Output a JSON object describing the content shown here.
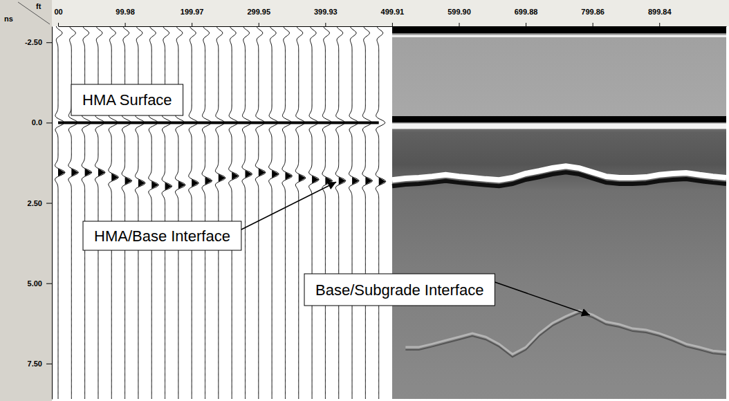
{
  "chart_data": {
    "type": "radargram",
    "x_label": "ft",
    "y_label": "ns",
    "xlim": [
      0,
      1000
    ],
    "xticks": [
      {
        "value": 0,
        "label": "00"
      },
      99.98,
      199.97,
      299.95,
      399.93,
      499.91,
      {
        "value": 599.9,
        "label": "599.90"
      },
      699.88,
      799.86,
      899.84
    ],
    "ylim": [
      -3,
      8.6
    ],
    "yticks": [
      {
        "value": -2.5,
        "label": "-2.50"
      },
      {
        "value": 0,
        "label": "0.0"
      },
      {
        "value": 2.5,
        "label": "2.50"
      },
      {
        "value": 5,
        "label": "5.00"
      },
      {
        "value": 7.5,
        "label": "7.50"
      }
    ],
    "x": [
      0,
      20,
      40,
      60,
      80,
      100,
      120,
      140,
      160,
      180,
      200,
      220,
      240,
      260,
      280,
      300,
      320,
      340,
      360,
      380,
      400,
      420,
      440,
      460,
      480,
      500,
      520,
      540,
      560,
      580,
      600,
      620,
      640,
      660,
      680,
      700,
      720,
      740,
      760,
      780,
      800,
      820,
      840,
      860,
      880,
      900,
      920,
      940,
      960,
      980,
      1000
    ],
    "series": [
      {
        "color": "#000000",
        "values": [
          -2.79,
          -2.79,
          -2.79,
          -2.79,
          -2.79,
          -2.79,
          -2.79,
          -2.79,
          -2.79,
          -2.79,
          -2.79,
          -2.79,
          -2.79,
          -2.79,
          -2.79,
          -2.79,
          -2.79,
          -2.79,
          -2.79,
          -2.79,
          -2.79,
          -2.79,
          -2.79,
          -2.79,
          -2.79,
          -2.79,
          -2.79,
          -2.79,
          -2.79,
          -2.79,
          -2.79,
          -2.79,
          -2.79,
          -2.79,
          -2.79,
          -2.79,
          -2.79,
          -2.79,
          -2.79,
          -2.79,
          -2.79,
          -2.79,
          -2.79,
          -2.79,
          -2.79,
          -2.79,
          -2.79,
          -2.79,
          -2.79,
          -2.79,
          -2.79
        ]
      },
      {
        "name": "HMA Surface",
        "color": "#000000",
        "line_style": "solid",
        "values": [
          0,
          0,
          0,
          0,
          0,
          0,
          0,
          0,
          0,
          0,
          0,
          0,
          0,
          0,
          0,
          0,
          0,
          0,
          0,
          0,
          0,
          0,
          0,
          0,
          0,
          0,
          0,
          0,
          0,
          0,
          0,
          0,
          0,
          0,
          0,
          0,
          0,
          0,
          0,
          0,
          0,
          0,
          0,
          0,
          0,
          0,
          0,
          0,
          0,
          0,
          0
        ]
      },
      {
        "name": "HMA/Base Interface",
        "color": "#ffffff",
        "marker": "triangle",
        "values": [
          1.55,
          1.55,
          1.55,
          1.55,
          1.7,
          1.81,
          1.88,
          1.94,
          1.98,
          1.94,
          1.88,
          1.81,
          1.72,
          1.66,
          1.6,
          1.55,
          1.6,
          1.66,
          1.72,
          1.77,
          1.81,
          1.81,
          1.81,
          1.81,
          1.83,
          1.88,
          1.83,
          1.81,
          1.77,
          1.72,
          1.77,
          1.81,
          1.85,
          1.88,
          1.81,
          1.68,
          1.6,
          1.51,
          1.45,
          1.51,
          1.64,
          1.77,
          1.81,
          1.81,
          1.79,
          1.72,
          1.68,
          1.66,
          1.72,
          1.77,
          1.81
        ]
      },
      {
        "name": "Base/Subgrade Interface",
        "color": "#b4b4b4",
        "values": [
          null,
          null,
          null,
          null,
          null,
          null,
          null,
          null,
          null,
          null,
          null,
          null,
          null,
          null,
          null,
          null,
          null,
          null,
          null,
          null,
          null,
          null,
          null,
          null,
          null,
          null,
          7.03,
          7.03,
          6.93,
          6.82,
          6.71,
          6.6,
          6.71,
          6.93,
          7.25,
          7.03,
          6.6,
          6.28,
          6.07,
          5.89,
          6.02,
          6.24,
          6.32,
          6.45,
          6.49,
          6.6,
          6.75,
          6.93,
          7.03,
          7.14,
          7.18
        ]
      }
    ]
  }
}
